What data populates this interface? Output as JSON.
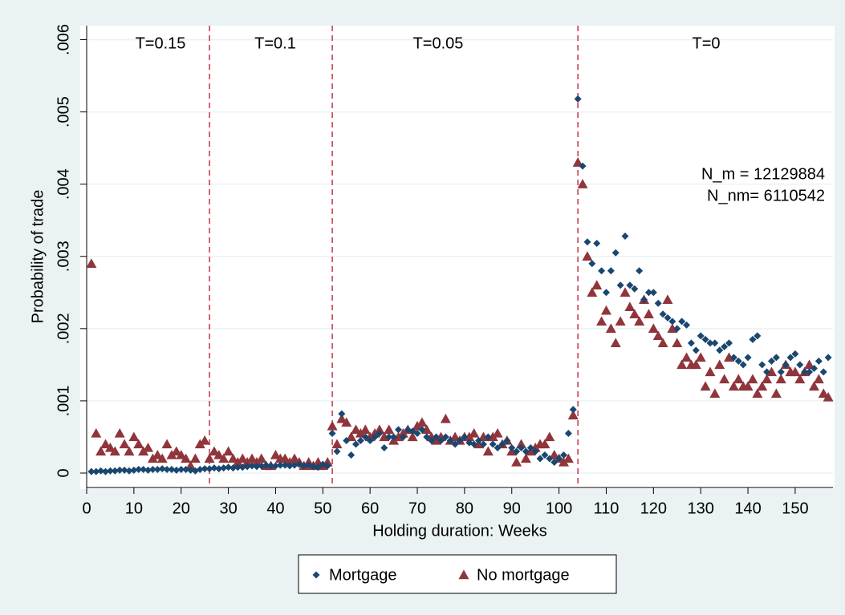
{
  "chart_data": {
    "type": "scatter",
    "xlabel": "Holding duration: Weeks",
    "ylabel": "Probability of trade",
    "xlim": [
      0,
      158
    ],
    "ylim": [
      -0.0002,
      0.00615
    ],
    "xticks": [
      0,
      10,
      20,
      30,
      40,
      50,
      60,
      70,
      80,
      90,
      100,
      110,
      120,
      130,
      140,
      150
    ],
    "yticks": [
      0,
      {
        "value": 0.001,
        "label": ".001"
      },
      {
        "value": 0.002,
        "label": ".002"
      },
      {
        "value": 0.003,
        "label": ".003"
      },
      {
        "value": 0.004,
        "label": ".004"
      },
      {
        "value": 0.005,
        "label": ".005"
      },
      {
        "value": 0.006,
        "label": ".006"
      }
    ],
    "grid": true,
    "reference_lines": {
      "x": [
        26,
        52,
        104
      ],
      "color": "#c0344a",
      "style": "dashed"
    },
    "annotations": [
      "T=0.15",
      "T=0.1",
      "T=0.05",
      "T=0",
      "N_m = 12129884",
      "N_nm= 6110542"
    ],
    "legend": "bottom",
    "x": [
      1,
      2,
      3,
      4,
      5,
      6,
      7,
      8,
      9,
      10,
      11,
      12,
      13,
      14,
      15,
      16,
      17,
      18,
      19,
      20,
      21,
      22,
      23,
      24,
      25,
      26,
      27,
      28,
      29,
      30,
      31,
      32,
      33,
      34,
      35,
      36,
      37,
      38,
      39,
      40,
      41,
      42,
      43,
      44,
      45,
      46,
      47,
      48,
      49,
      50,
      51,
      52,
      53,
      54,
      55,
      56,
      57,
      58,
      59,
      60,
      61,
      62,
      63,
      64,
      65,
      66,
      67,
      68,
      69,
      70,
      71,
      72,
      73,
      74,
      75,
      76,
      77,
      78,
      79,
      80,
      81,
      82,
      83,
      84,
      85,
      86,
      87,
      88,
      89,
      90,
      91,
      92,
      93,
      94,
      95,
      96,
      97,
      98,
      99,
      100,
      101,
      102,
      103,
      104,
      105,
      106,
      107,
      108,
      109,
      110,
      111,
      112,
      113,
      114,
      115,
      116,
      117,
      118,
      119,
      120,
      121,
      122,
      123,
      124,
      125,
      126,
      127,
      128,
      129,
      130,
      131,
      132,
      133,
      134,
      135,
      136,
      137,
      138,
      139,
      140,
      141,
      142,
      143,
      144,
      145,
      146,
      147,
      148,
      149,
      150,
      151,
      152,
      153,
      154,
      155,
      156,
      157
    ],
    "series": [
      {
        "name": "Mortgage",
        "color": "#1a476f",
        "marker": "diamond",
        "values": [
          2e-05,
          2e-05,
          3e-05,
          2e-05,
          3e-05,
          3e-05,
          4e-05,
          4e-05,
          3e-05,
          4e-05,
          5e-05,
          5e-05,
          4e-05,
          5e-05,
          5e-05,
          6e-05,
          5e-05,
          5e-05,
          4e-05,
          5e-05,
          5e-05,
          4e-05,
          3e-05,
          5e-05,
          6e-05,
          6e-05,
          7e-05,
          6e-05,
          7e-05,
          8e-05,
          7e-05,
          8e-05,
          8e-05,
          9e-05,
          0.0001,
          9e-05,
          0.0001,
          0.00011,
          0.0001,
          0.0001,
          0.00011,
          0.00011,
          0.0001,
          0.00011,
          0.00012,
          0.0001,
          0.00011,
          9e-05,
          8e-05,
          0.00012,
          0.0001,
          0.00055,
          0.0003,
          0.00082,
          0.00045,
          0.00025,
          0.0004,
          0.00045,
          0.0005,
          0.00045,
          0.0005,
          0.00055,
          0.00035,
          0.0005,
          0.0005,
          0.0006,
          0.0005,
          0.0006,
          0.00058,
          0.00055,
          0.0006,
          0.0005,
          0.00045,
          0.0005,
          0.00045,
          0.0005,
          0.00045,
          0.0004,
          0.00045,
          0.0005,
          0.00042,
          0.0004,
          0.00045,
          0.0004,
          0.0005,
          0.0004,
          0.00035,
          0.0004,
          0.00045,
          0.00035,
          0.0003,
          0.00035,
          0.0003,
          0.00035,
          0.0003,
          0.0002,
          0.00025,
          0.0002,
          0.00015,
          0.0002,
          0.00025,
          0.00055,
          0.00088,
          0.00518,
          0.00425,
          0.0032,
          0.0029,
          0.00318,
          0.0028,
          0.0025,
          0.0028,
          0.00305,
          0.0026,
          0.00328,
          0.0026,
          0.00255,
          0.0028,
          0.0024,
          0.0025,
          0.0025,
          0.00235,
          0.0022,
          0.00215,
          0.0021,
          0.002,
          0.0021,
          0.00205,
          0.0018,
          0.0017,
          0.0019,
          0.00185,
          0.0018,
          0.0018,
          0.0017,
          0.00175,
          0.0018,
          0.0016,
          0.00155,
          0.0015,
          0.0016,
          0.00185,
          0.0019,
          0.0015,
          0.0014,
          0.00155,
          0.0016,
          0.0014,
          0.0015,
          0.0016,
          0.00165,
          0.0015,
          0.0014,
          0.0014,
          0.00145,
          0.00155,
          0.0014,
          0.0016
        ]
      },
      {
        "name": "No mortgage",
        "color": "#90353b",
        "marker": "triangle",
        "values": [
          0.0029,
          0.00055,
          0.0003,
          0.0004,
          0.00035,
          0.0003,
          0.00055,
          0.0004,
          0.0003,
          0.0005,
          0.0004,
          0.0003,
          0.00035,
          0.0002,
          0.00025,
          0.0002,
          0.0004,
          0.00025,
          0.0003,
          0.00025,
          0.0002,
          0.0001,
          0.0002,
          0.0004,
          0.00045,
          0.0002,
          0.0003,
          0.00025,
          0.0002,
          0.0003,
          0.0002,
          0.00015,
          0.0002,
          0.00015,
          0.0002,
          0.00015,
          0.0002,
          0.0001,
          0.0001,
          0.00025,
          0.0002,
          0.0002,
          0.00015,
          0.0002,
          0.00015,
          0.0001,
          0.00015,
          0.0001,
          0.00015,
          0.0001,
          0.00015,
          0.00065,
          0.0004,
          0.00075,
          0.0007,
          0.0005,
          0.0006,
          0.00055,
          0.0006,
          0.0005,
          0.00055,
          0.0006,
          0.0005,
          0.0006,
          0.00045,
          0.0005,
          0.00055,
          0.0006,
          0.0005,
          0.00065,
          0.0007,
          0.0006,
          0.0005,
          0.00045,
          0.0005,
          0.00075,
          0.00045,
          0.0005,
          0.00045,
          0.0005,
          0.0005,
          0.00055,
          0.0004,
          0.0005,
          0.0003,
          0.0005,
          0.00055,
          0.0004,
          0.00045,
          0.0003,
          0.00015,
          0.0004,
          0.0002,
          0.0003,
          0.00035,
          0.0004,
          0.0004,
          0.0005,
          0.00025,
          0.0002,
          0.00015,
          0.0002,
          0.0008,
          0.0043,
          0.004,
          0.003,
          0.0025,
          0.0026,
          0.0021,
          0.00225,
          0.002,
          0.0018,
          0.0021,
          0.0025,
          0.0023,
          0.0022,
          0.0021,
          0.0024,
          0.0022,
          0.002,
          0.0019,
          0.0018,
          0.0024,
          0.002,
          0.0018,
          0.0015,
          0.0016,
          0.0015,
          0.0015,
          0.0016,
          0.0012,
          0.0014,
          0.0011,
          0.0015,
          0.0013,
          0.0016,
          0.0012,
          0.0013,
          0.0012,
          0.0012,
          0.0013,
          0.0011,
          0.0012,
          0.0013,
          0.0014,
          0.0011,
          0.0013,
          0.0015,
          0.0014,
          0.0014,
          0.0013,
          0.0014,
          0.0015,
          0.0012,
          0.0013,
          0.0011,
          0.00105
        ]
      }
    ]
  }
}
